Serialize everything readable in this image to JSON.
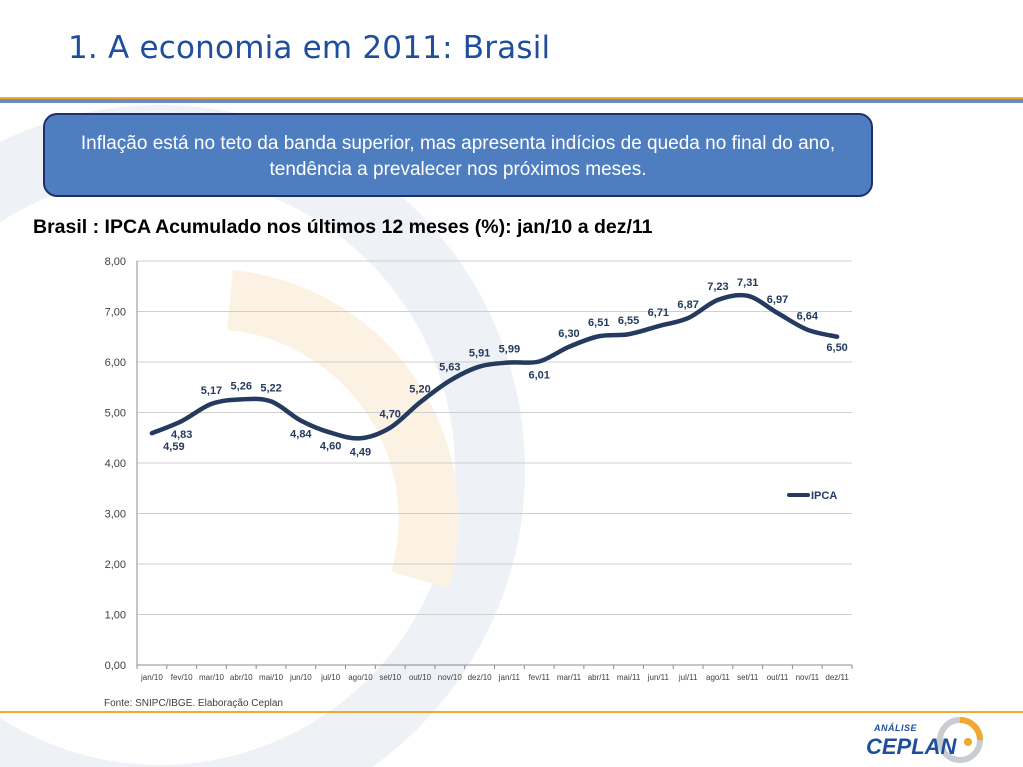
{
  "slide": {
    "title": "1. A economia em 2011: Brasil",
    "callout": "Inflação está no teto da banda superior, mas apresenta indícios de queda no final do ano, tendência a prevalecer nos próximos meses.",
    "chart_heading": "Brasil : IPCA Acumulado nos últimos 12 meses  (%): jan/10 a dez/11",
    "source": "Fonte: SNIPC/IBGE. Elaboração Ceplan",
    "logo_small": "ANÁLISE",
    "logo_big": "CEPLAN"
  },
  "colors": {
    "title": "#1f4e9c",
    "callout_bg": "#4f7ec0",
    "callout_border": "#1f2f6e",
    "series": "#243a5e",
    "accent_orange": "#f0a830"
  },
  "chart_data": {
    "type": "line",
    "title": "",
    "xlabel": "",
    "ylabel": "",
    "categories": [
      "jan/10",
      "fev/10",
      "mar/10",
      "abr/10",
      "mai/10",
      "jun/10",
      "jul/10",
      "ago/10",
      "set/10",
      "out/10",
      "nov/10",
      "dez/10",
      "jan/11",
      "fev/11",
      "mar/11",
      "abr/11",
      "mai/11",
      "jun/11",
      "jul/11",
      "ago/11",
      "set/11",
      "out/11",
      "nov/11",
      "dez/11"
    ],
    "y_ticks": [
      "0,00",
      "1,00",
      "2,00",
      "3,00",
      "4,00",
      "5,00",
      "6,00",
      "7,00",
      "8,00"
    ],
    "ylim": [
      0,
      8
    ],
    "grid": true,
    "legend_position": "right",
    "series": [
      {
        "name": "IPCA",
        "values": [
          4.59,
          4.83,
          5.17,
          5.26,
          5.22,
          4.84,
          4.6,
          4.49,
          4.7,
          5.2,
          5.63,
          5.91,
          5.99,
          6.01,
          6.3,
          6.51,
          6.55,
          6.71,
          6.87,
          7.23,
          7.31,
          6.97,
          6.64,
          6.5
        ],
        "labels": [
          "4,59",
          "4,83",
          "5,17",
          "5,26",
          "5,22",
          "4,84",
          "4,60",
          "4,49",
          "4,70",
          "5,20",
          "5,63",
          "5,91",
          "5,99",
          "6,01",
          "6,30",
          "6,51",
          "6,55",
          "6,71",
          "6,87",
          "7,23",
          "7,31",
          "6,97",
          "6,64",
          "6,50"
        ]
      }
    ]
  }
}
